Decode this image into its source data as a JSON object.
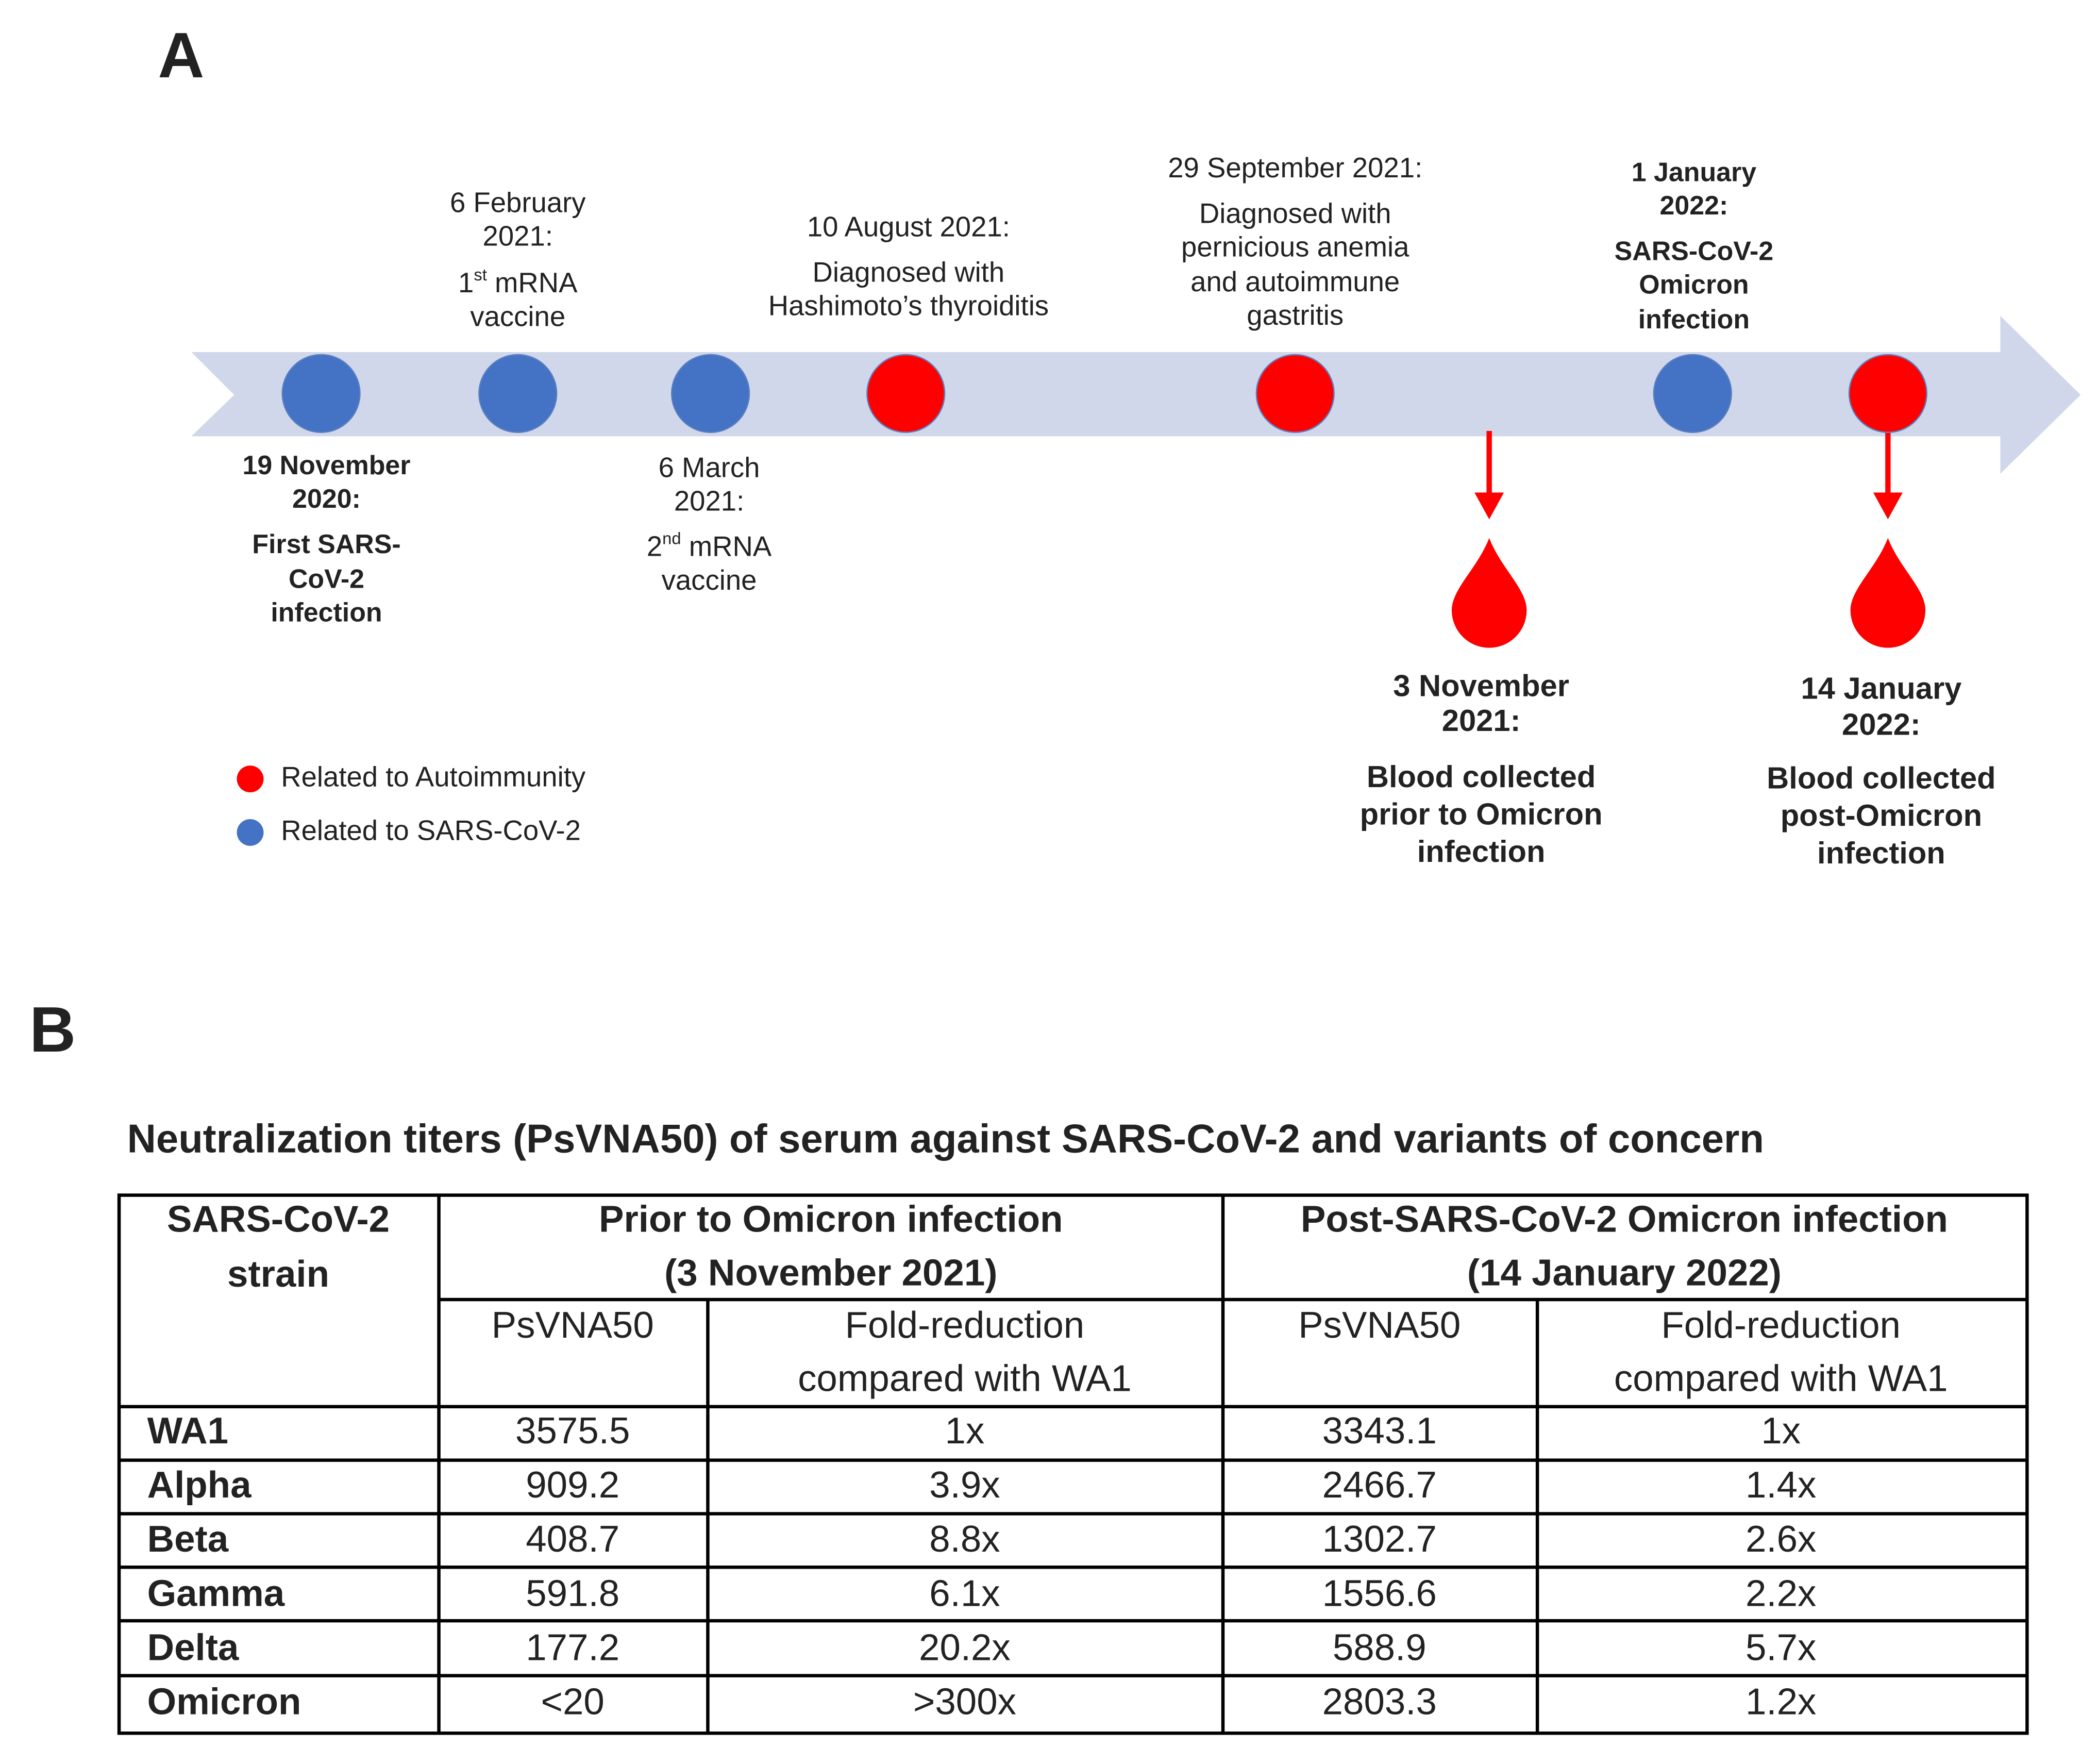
{
  "panels": [
    "A",
    "B"
  ],
  "timeline": {
    "dots": [
      {
        "color": "#4472c4"
      },
      {
        "color": "#4472c4"
      },
      {
        "color": "#4472c4"
      },
      {
        "color": "#ff0000"
      },
      {
        "color": "#ff0000"
      },
      {
        "color": "#4472c4"
      },
      {
        "color": "#ff0000"
      }
    ],
    "events": [
      {
        "lines": [
          "19 November",
          "2020:",
          "First SARS-",
          "CoV-2",
          "infection"
        ]
      },
      {
        "lines": [
          "6 February",
          "2021:",
          {
            "base": "1",
            "sup": "st",
            "rest": " mRNA"
          },
          "vaccine"
        ]
      },
      {
        "lines": [
          "6 March",
          "2021:",
          {
            "base": "2",
            "sup": "nd",
            "rest": " mRNA"
          },
          "vaccine"
        ]
      },
      {
        "lines": [
          "10 August 2021:",
          "Diagnosed with",
          "Hashimoto’s thyroiditis"
        ]
      },
      {
        "lines": [
          "29 September 2021:",
          "Diagnosed with",
          "pernicious anemia",
          "and autoimmune",
          "gastritis"
        ]
      },
      {
        "lines": [
          "1 January",
          "2022:",
          "SARS-CoV-2",
          "Omicron",
          "infection"
        ]
      }
    ],
    "samples": [
      {
        "lines": [
          "3 November",
          "2021:",
          "Blood collected",
          "prior to Omicron",
          "infection"
        ]
      },
      {
        "lines": [
          "14 January",
          "2022:",
          "Blood collected",
          "post-Omicron",
          "infection"
        ]
      }
    ],
    "legend": [
      {
        "label": "Related to Autoimmunity",
        "color": "#ff0000"
      },
      {
        "label": "Related to SARS-CoV-2",
        "color": "#4472c4"
      }
    ]
  },
  "table": {
    "title": "Neutralization titers (PsVNA50) of serum against SARS-CoV-2 and variants of concern",
    "strain_header": [
      "SARS-CoV-2",
      "strain"
    ],
    "groups": [
      {
        "lines": [
          "Prior to Omicron infection",
          "(3 November 2021)"
        ],
        "subcols": [
          [
            "PsVNA50"
          ],
          [
            "Fold-reduction",
            "compared with WA1"
          ]
        ]
      },
      {
        "lines": [
          "Post-SARS-CoV-2 Omicron infection",
          "(14 January 2022)"
        ],
        "subcols": [
          [
            "PsVNA50"
          ],
          [
            "Fold-reduction",
            "compared with WA1"
          ]
        ]
      }
    ],
    "rows": [
      [
        "WA1",
        "3575.5",
        "1x",
        "3343.1",
        "1x"
      ],
      [
        "Alpha",
        "909.2",
        "3.9x",
        "2466.7",
        "1.4x"
      ],
      [
        "Beta",
        "408.7",
        "8.8x",
        "1302.7",
        "2.6x"
      ],
      [
        "Gamma",
        "591.8",
        "6.1x",
        "1556.6",
        "2.2x"
      ],
      [
        "Delta",
        "177.2",
        "20.2x",
        "588.9",
        "5.7x"
      ],
      [
        "Omicron",
        "<20",
        ">300x",
        "2803.3",
        "1.2x"
      ]
    ]
  }
}
